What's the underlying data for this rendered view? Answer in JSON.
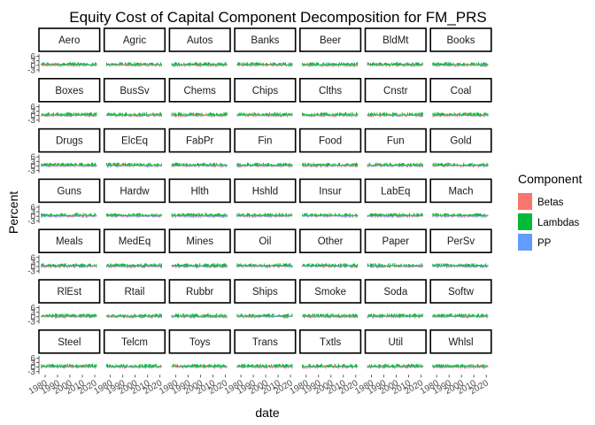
{
  "chart_data": {
    "type": "bar",
    "title": "Equity Cost of Capital Component Decomposition for FM_PRS",
    "xlabel": "date",
    "ylabel": "Percent",
    "x_ticks": [
      "1980",
      "1990",
      "2000",
      "2010",
      "2020"
    ],
    "xlim": [
      1975,
      2024
    ],
    "y_ticks": [
      "6",
      "3",
      "0",
      "-3"
    ],
    "y_tick_values": [
      6,
      3,
      0,
      -3
    ],
    "ylim": [
      -4.5,
      7.5
    ],
    "grid": false,
    "legend_title": "Component",
    "legend_position": "right",
    "series": [
      {
        "name": "Betas",
        "color": "#F8766D"
      },
      {
        "name": "Lambdas",
        "color": "#00BA38"
      },
      {
        "name": "PP",
        "color": "#619CFF"
      }
    ],
    "facets": [
      "Aero",
      "Agric",
      "Autos",
      "Banks",
      "Beer",
      "BldMt",
      "Books",
      "Boxes",
      "BusSv",
      "Chems",
      "Chips",
      "Clths",
      "Cnstr",
      "Coal",
      "Drugs",
      "ElcEq",
      "FabPr",
      "Fin",
      "Food",
      "Fun",
      "Gold",
      "Guns",
      "Hardw",
      "Hlth",
      "Hshld",
      "Insur",
      "LabEq",
      "Mach",
      "Meals",
      "MedEq",
      "Mines",
      "Oil",
      "Other",
      "Paper",
      "PerSv",
      "RlEst",
      "Rtail",
      "Rubbr",
      "Ships",
      "Smoke",
      "Soda",
      "Softw",
      "Steel",
      "Telcm",
      "Toys",
      "Trans",
      "Txtls",
      "Util",
      "Whlsl"
    ]
  }
}
